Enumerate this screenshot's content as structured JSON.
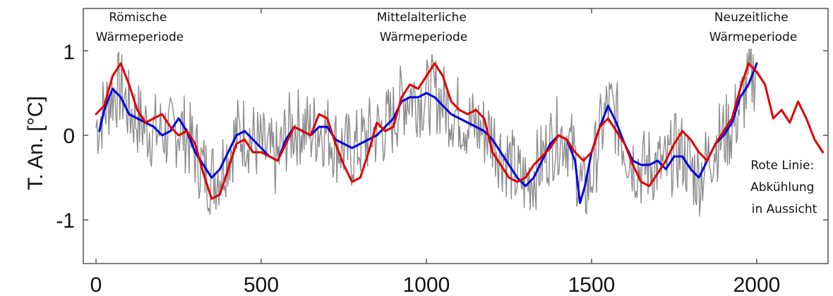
{
  "chart_data": {
    "type": "line",
    "title": "",
    "xlabel": "",
    "ylabel": "T. An. [°C]",
    "xlim": [
      -20,
      2240
    ],
    "ylim": [
      -1.55,
      1.5
    ],
    "x_ticks": [
      0,
      500,
      1000,
      1500,
      2000
    ],
    "x_tick_labels": [
      "0",
      "500",
      "1000",
      "1500",
      "2000"
    ],
    "y_ticks": [
      1,
      0,
      -1
    ],
    "y_tick_labels": [
      "1",
      "0",
      "-1"
    ],
    "grid": false,
    "legend": "none",
    "annotations": [
      {
        "id": "roman",
        "lines": [
          "Römische",
          "Wärmeperiode"
        ]
      },
      {
        "id": "medieval",
        "lines": [
          "Mittelalterliche",
          "Wärmeperiode"
        ]
      },
      {
        "id": "modern",
        "lines": [
          "Neuzeitliche",
          "Wärmeperiode"
        ]
      },
      {
        "id": "red-line-note",
        "lines": [
          "Rote Linie:",
          "Abkühlung",
          "in Aussicht"
        ]
      }
    ],
    "series": [
      {
        "key": "annual",
        "color": "#8c8c8c",
        "x": [
          0,
          25,
          50,
          75,
          100,
          125,
          150,
          175,
          200,
          225,
          250,
          275,
          300,
          325,
          350,
          375,
          400,
          425,
          450,
          475,
          500,
          525,
          550,
          575,
          600,
          625,
          650,
          675,
          700,
          725,
          750,
          775,
          800,
          825,
          850,
          875,
          900,
          925,
          950,
          975,
          1000,
          1025,
          1050,
          1075,
          1100,
          1125,
          1150,
          1175,
          1200,
          1225,
          1250,
          1275,
          1300,
          1325,
          1350,
          1375,
          1400,
          1425,
          1450,
          1475,
          1500,
          1525,
          1550,
          1575,
          1600,
          1625,
          1650,
          1675,
          1700,
          1725,
          1750,
          1775,
          1800,
          1825,
          1850,
          1875,
          1900,
          1925,
          1950,
          1975,
          2000
        ],
        "y": [
          0.1,
          0.3,
          0.5,
          0.55,
          0.3,
          0.2,
          0.1,
          0.05,
          0.05,
          0.0,
          0.1,
          0.0,
          -0.2,
          -0.4,
          -0.5,
          -0.4,
          -0.2,
          0.0,
          0.05,
          -0.05,
          -0.15,
          -0.25,
          -0.3,
          0.0,
          0.1,
          0.1,
          0.05,
          0.1,
          0.05,
          -0.1,
          -0.15,
          -0.2,
          -0.1,
          0.0,
          0.05,
          0.1,
          0.2,
          0.4,
          0.5,
          0.45,
          0.45,
          0.5,
          0.4,
          0.3,
          0.25,
          0.15,
          0.1,
          0.05,
          0.0,
          -0.2,
          -0.3,
          -0.5,
          -0.55,
          -0.45,
          -0.3,
          -0.1,
          0.0,
          0.0,
          -0.3,
          -0.7,
          -0.5,
          0.0,
          0.35,
          0.2,
          -0.1,
          -0.3,
          -0.4,
          -0.35,
          -0.35,
          -0.4,
          -0.2,
          -0.2,
          -0.4,
          -0.5,
          -0.3,
          -0.1,
          0.0,
          0.1,
          0.35,
          0.6,
          0.8
        ]
      },
      {
        "key": "smoothed",
        "color": "#0000e0",
        "x": [
          10,
          25,
          50,
          75,
          100,
          125,
          150,
          175,
          200,
          225,
          250,
          275,
          300,
          325,
          350,
          375,
          400,
          425,
          450,
          475,
          500,
          525,
          550,
          575,
          600,
          625,
          650,
          675,
          700,
          725,
          750,
          775,
          800,
          825,
          850,
          875,
          900,
          925,
          950,
          975,
          1000,
          1025,
          1050,
          1075,
          1100,
          1125,
          1150,
          1175,
          1200,
          1225,
          1250,
          1275,
          1300,
          1325,
          1350,
          1375,
          1400,
          1425,
          1450,
          1465,
          1480,
          1500,
          1525,
          1550,
          1575,
          1600,
          1625,
          1650,
          1675,
          1700,
          1725,
          1750,
          1775,
          1800,
          1825,
          1850,
          1875,
          1900,
          1925,
          1950,
          1975,
          2000
        ],
        "y": [
          0.05,
          0.3,
          0.55,
          0.45,
          0.25,
          0.2,
          0.15,
          0.1,
          0.0,
          0.05,
          0.2,
          0.05,
          -0.2,
          -0.35,
          -0.5,
          -0.4,
          -0.2,
          0.0,
          0.05,
          -0.05,
          -0.15,
          -0.25,
          -0.3,
          -0.05,
          0.1,
          0.05,
          0.0,
          0.1,
          0.1,
          -0.05,
          -0.1,
          -0.15,
          -0.1,
          -0.05,
          0.0,
          0.1,
          0.2,
          0.4,
          0.45,
          0.45,
          0.5,
          0.45,
          0.35,
          0.25,
          0.2,
          0.15,
          0.1,
          0.05,
          -0.05,
          -0.2,
          -0.35,
          -0.5,
          -0.6,
          -0.5,
          -0.3,
          -0.1,
          0.0,
          -0.05,
          -0.3,
          -0.8,
          -0.6,
          -0.2,
          0.1,
          0.35,
          0.15,
          -0.1,
          -0.3,
          -0.35,
          -0.35,
          -0.3,
          -0.4,
          -0.25,
          -0.25,
          -0.4,
          -0.5,
          -0.3,
          -0.1,
          0.0,
          0.15,
          0.45,
          0.6,
          0.85
        ]
      },
      {
        "key": "model",
        "color": "#e00000",
        "x": [
          0,
          25,
          50,
          75,
          100,
          125,
          150,
          175,
          200,
          225,
          250,
          275,
          300,
          325,
          350,
          375,
          400,
          425,
          450,
          475,
          500,
          525,
          550,
          575,
          600,
          625,
          650,
          675,
          700,
          725,
          750,
          775,
          800,
          825,
          850,
          875,
          900,
          925,
          950,
          975,
          1000,
          1025,
          1050,
          1075,
          1100,
          1125,
          1150,
          1175,
          1200,
          1225,
          1250,
          1275,
          1300,
          1325,
          1350,
          1375,
          1400,
          1425,
          1450,
          1475,
          1500,
          1525,
          1550,
          1575,
          1600,
          1625,
          1650,
          1675,
          1700,
          1725,
          1750,
          1775,
          1800,
          1825,
          1850,
          1875,
          1900,
          1925,
          1950,
          1975,
          2000,
          2025,
          2050,
          2075,
          2100,
          2125,
          2150,
          2175,
          2200
        ],
        "y": [
          0.25,
          0.35,
          0.7,
          0.85,
          0.6,
          0.3,
          0.15,
          0.2,
          0.25,
          0.1,
          0.0,
          0.05,
          -0.1,
          -0.45,
          -0.75,
          -0.7,
          -0.4,
          -0.1,
          -0.05,
          -0.2,
          -0.2,
          -0.25,
          -0.3,
          -0.1,
          0.1,
          0.05,
          0.0,
          0.25,
          0.2,
          -0.1,
          -0.35,
          -0.55,
          -0.5,
          -0.2,
          0.15,
          0.05,
          0.1,
          0.45,
          0.6,
          0.55,
          0.7,
          0.85,
          0.7,
          0.4,
          0.3,
          0.25,
          0.3,
          0.2,
          -0.2,
          -0.35,
          -0.5,
          -0.55,
          -0.5,
          -0.35,
          -0.25,
          -0.15,
          0.0,
          -0.05,
          -0.2,
          -0.3,
          -0.2,
          0.1,
          0.2,
          0.05,
          -0.1,
          -0.35,
          -0.55,
          -0.6,
          -0.45,
          -0.3,
          -0.1,
          0.05,
          -0.05,
          -0.2,
          -0.3,
          -0.1,
          0.05,
          0.2,
          0.55,
          0.85,
          0.75,
          0.6,
          0.2,
          0.3,
          0.15,
          0.4,
          0.2,
          -0.05,
          -0.2
        ]
      }
    ]
  }
}
